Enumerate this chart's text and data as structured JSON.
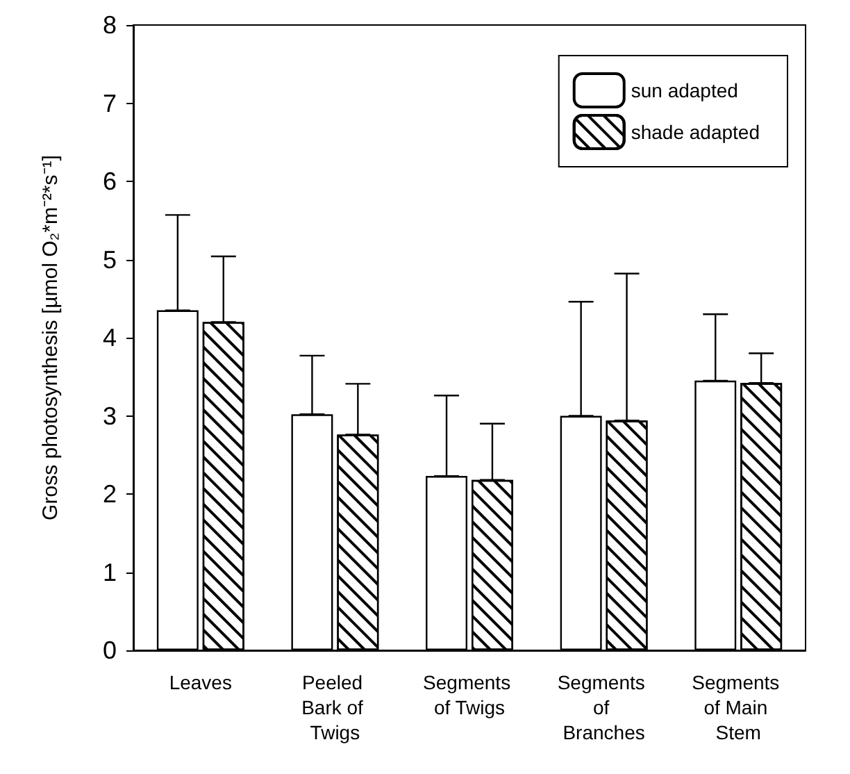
{
  "chart_data": {
    "type": "bar",
    "ylabel": "Gross photosynthesis [µmol O₂*m⁻²*s⁻¹]",
    "categories": [
      "Leaves",
      "Peeled Bark of Twigs",
      "Segments of Twigs",
      "Segments of Branches",
      "Segments of Main Stem"
    ],
    "series": [
      {
        "name": "sun adapted",
        "color": "#ffffff",
        "values": [
          4.35,
          3.02,
          2.23,
          3.0,
          3.45
        ],
        "errors": [
          [
            4.35,
            5.57
          ],
          [
            3.02,
            3.77
          ],
          [
            2.23,
            3.26
          ],
          [
            3.0,
            4.46
          ],
          [
            3.45,
            4.3
          ]
        ]
      },
      {
        "name": "shade adapted",
        "color": "#ffffff",
        "values": [
          4.2,
          2.76,
          2.18,
          2.94,
          3.42
        ],
        "errors": [
          [
            4.2,
            5.04
          ],
          [
            2.76,
            3.41
          ],
          [
            2.18,
            2.9
          ],
          [
            2.94,
            4.82
          ],
          [
            3.42,
            3.8
          ]
        ]
      }
    ],
    "ylim": [
      0,
      8
    ],
    "yticks": [
      0,
      1,
      2,
      3,
      4,
      5,
      6,
      7,
      8
    ],
    "grid": false,
    "legend": "top right"
  }
}
